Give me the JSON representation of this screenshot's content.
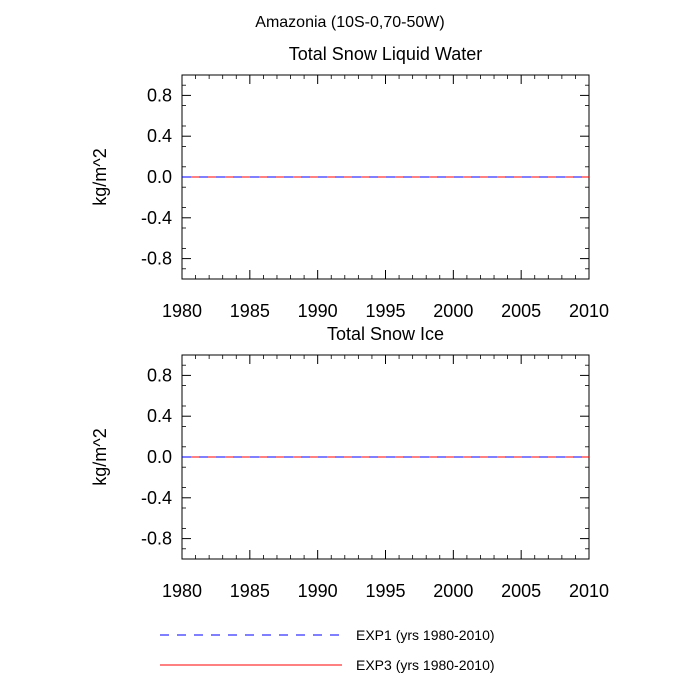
{
  "figure": {
    "title": "Amazonia (10S-0,70-50W)"
  },
  "chart_data": [
    {
      "type": "line",
      "title": "Total Snow Liquid Water",
      "xlabel": "",
      "ylabel": "kg/m^2",
      "xlim": [
        1980,
        2010
      ],
      "ylim": [
        -1.0,
        1.0
      ],
      "x_ticks": [
        "1980",
        "1985",
        "1990",
        "1995",
        "2000",
        "2005",
        "2010"
      ],
      "y_ticks": [
        "0.8",
        "0.4",
        "0.0",
        "-0.4",
        "-0.8"
      ],
      "series": [
        {
          "name": "EXP1 (yrs 1980-2010)",
          "color": "#0000ff",
          "dash": "dashed",
          "x": [
            1980,
            2010
          ],
          "y": [
            0.0,
            0.0
          ]
        },
        {
          "name": "EXP3 (yrs 1980-2010)",
          "color": "#ff0000",
          "dash": "solid",
          "x": [
            1980,
            2010
          ],
          "y": [
            0.0,
            0.0
          ]
        }
      ]
    },
    {
      "type": "line",
      "title": "Total Snow Ice",
      "xlabel": "",
      "ylabel": "kg/m^2",
      "xlim": [
        1980,
        2010
      ],
      "ylim": [
        -1.0,
        1.0
      ],
      "x_ticks": [
        "1980",
        "1985",
        "1990",
        "1995",
        "2000",
        "2005",
        "2010"
      ],
      "y_ticks": [
        "0.8",
        "0.4",
        "0.0",
        "-0.4",
        "-0.8"
      ],
      "series": [
        {
          "name": "EXP1 (yrs 1980-2010)",
          "color": "#0000ff",
          "dash": "dashed",
          "x": [
            1980,
            2010
          ],
          "y": [
            0.0,
            0.0
          ]
        },
        {
          "name": "EXP3 (yrs 1980-2010)",
          "color": "#ff0000",
          "dash": "solid",
          "x": [
            1980,
            2010
          ],
          "y": [
            0.0,
            0.0
          ]
        }
      ]
    }
  ],
  "legend": {
    "placement": "bottom",
    "items": [
      {
        "label": "EXP1 (yrs 1980-2010)",
        "color": "#0000ff",
        "dash": "dashed"
      },
      {
        "label": "EXP3 (yrs 1980-2010)",
        "color": "#ff0000",
        "dash": "solid"
      }
    ]
  }
}
